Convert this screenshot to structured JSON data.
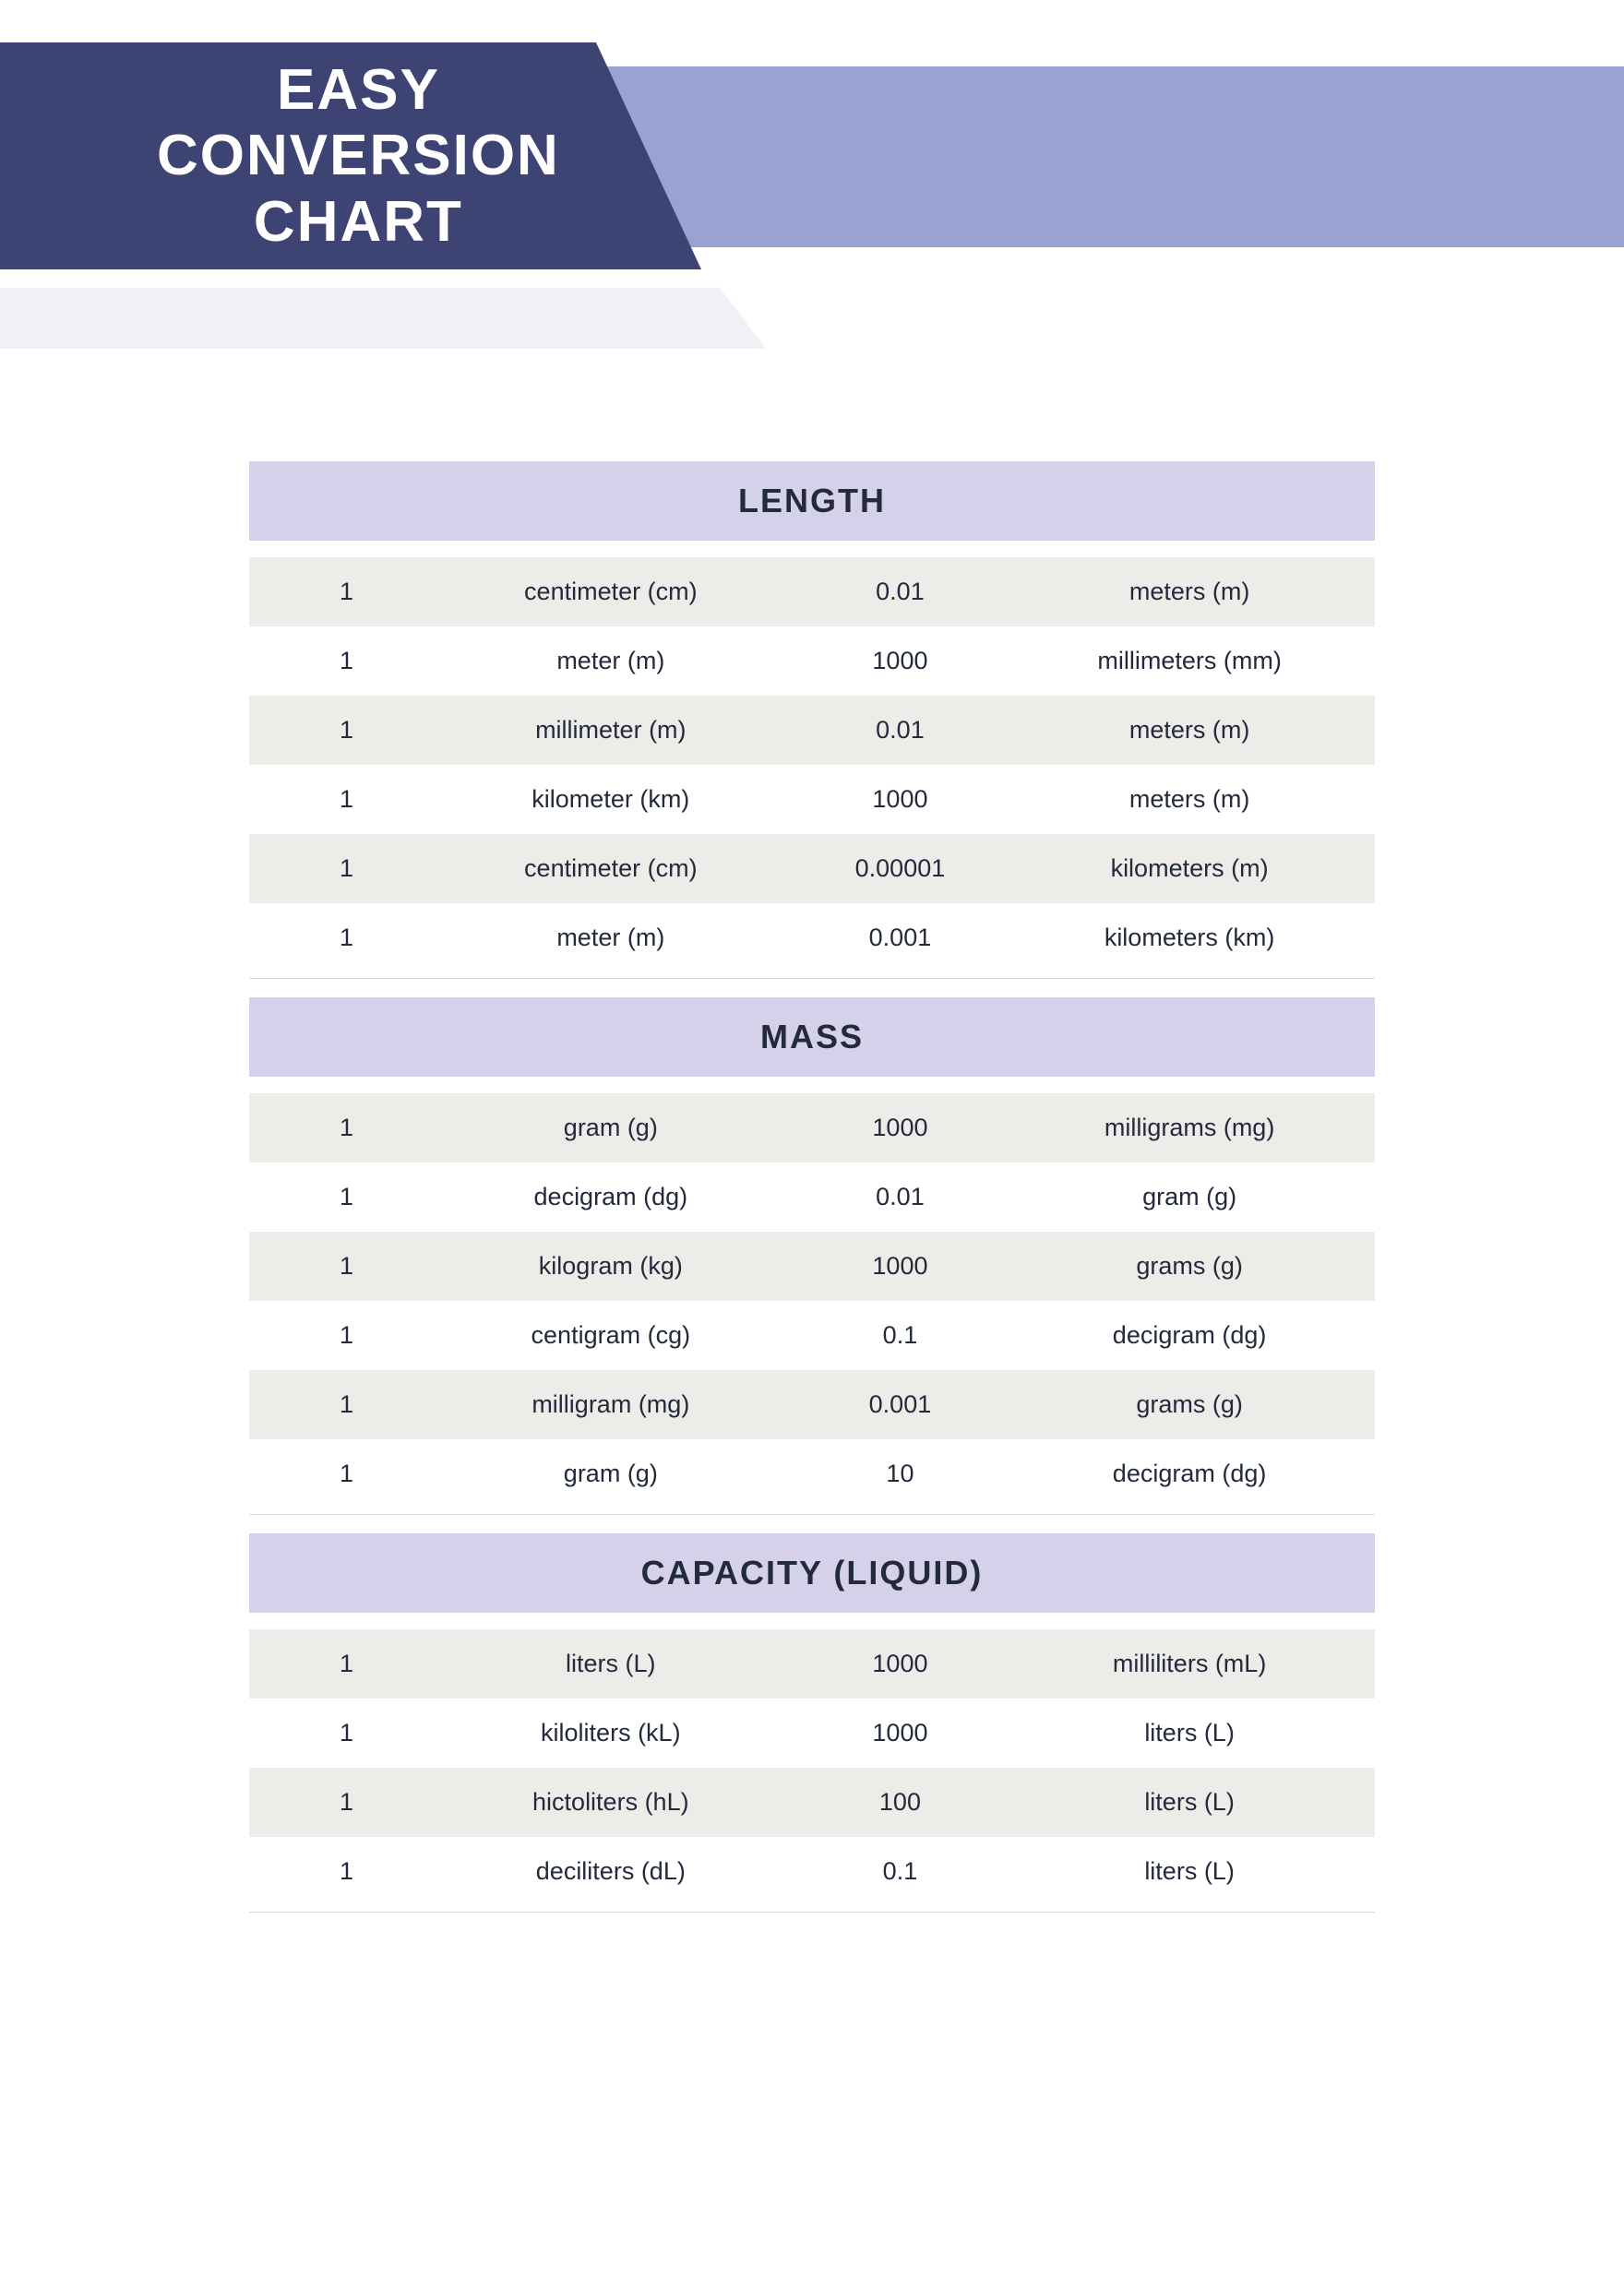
{
  "header": {
    "title_line1": "EASY",
    "title_line2": "CONVERSION",
    "title_line3": "CHART",
    "colors": {
      "dark": "#3d4473",
      "light": "#99a2d1",
      "pale": "#f3eff6",
      "section_header_bg": "#d6d1eb",
      "row_odd_bg": "#eeece9",
      "row_even_bg": "#ffffff",
      "text": "#232a3b"
    }
  },
  "sections": [
    {
      "title": "LENGTH",
      "rows": [
        {
          "a": "1",
          "b": "centimeter (cm)",
          "c": "0.01",
          "d": "meters (m)"
        },
        {
          "a": "1",
          "b": "meter (m)",
          "c": "1000",
          "d": "millimeters (mm)"
        },
        {
          "a": "1",
          "b": "millimeter (m)",
          "c": "0.01",
          "d": "meters (m)"
        },
        {
          "a": "1",
          "b": "kilometer (km)",
          "c": "1000",
          "d": "meters (m)"
        },
        {
          "a": "1",
          "b": "centimeter (cm)",
          "c": "0.00001",
          "d": "kilometers (m)"
        },
        {
          "a": "1",
          "b": "meter (m)",
          "c": "0.001",
          "d": "kilometers (km)"
        }
      ]
    },
    {
      "title": "MASS",
      "rows": [
        {
          "a": "1",
          "b": "gram (g)",
          "c": "1000",
          "d": "milligrams (mg)"
        },
        {
          "a": "1",
          "b": "decigram (dg)",
          "c": "0.01",
          "d": "gram (g)"
        },
        {
          "a": "1",
          "b": "kilogram (kg)",
          "c": "1000",
          "d": "grams (g)"
        },
        {
          "a": "1",
          "b": "centigram (cg)",
          "c": "0.1",
          "d": "decigram (dg)"
        },
        {
          "a": "1",
          "b": "milligram (mg)",
          "c": "0.001",
          "d": "grams (g)"
        },
        {
          "a": "1",
          "b": "gram (g)",
          "c": "10",
          "d": "decigram (dg)"
        }
      ]
    },
    {
      "title": "CAPACITY (LIQUID)",
      "rows": [
        {
          "a": "1",
          "b": "liters (L)",
          "c": "1000",
          "d": "milliliters (mL)"
        },
        {
          "a": "1",
          "b": "kiloliters (kL)",
          "c": "1000",
          "d": "liters (L)"
        },
        {
          "a": "1",
          "b": "hictoliters (hL)",
          "c": "100",
          "d": "liters (L)"
        },
        {
          "a": "1",
          "b": "deciliters (dL)",
          "c": "0.1",
          "d": "liters (L)"
        }
      ]
    }
  ]
}
